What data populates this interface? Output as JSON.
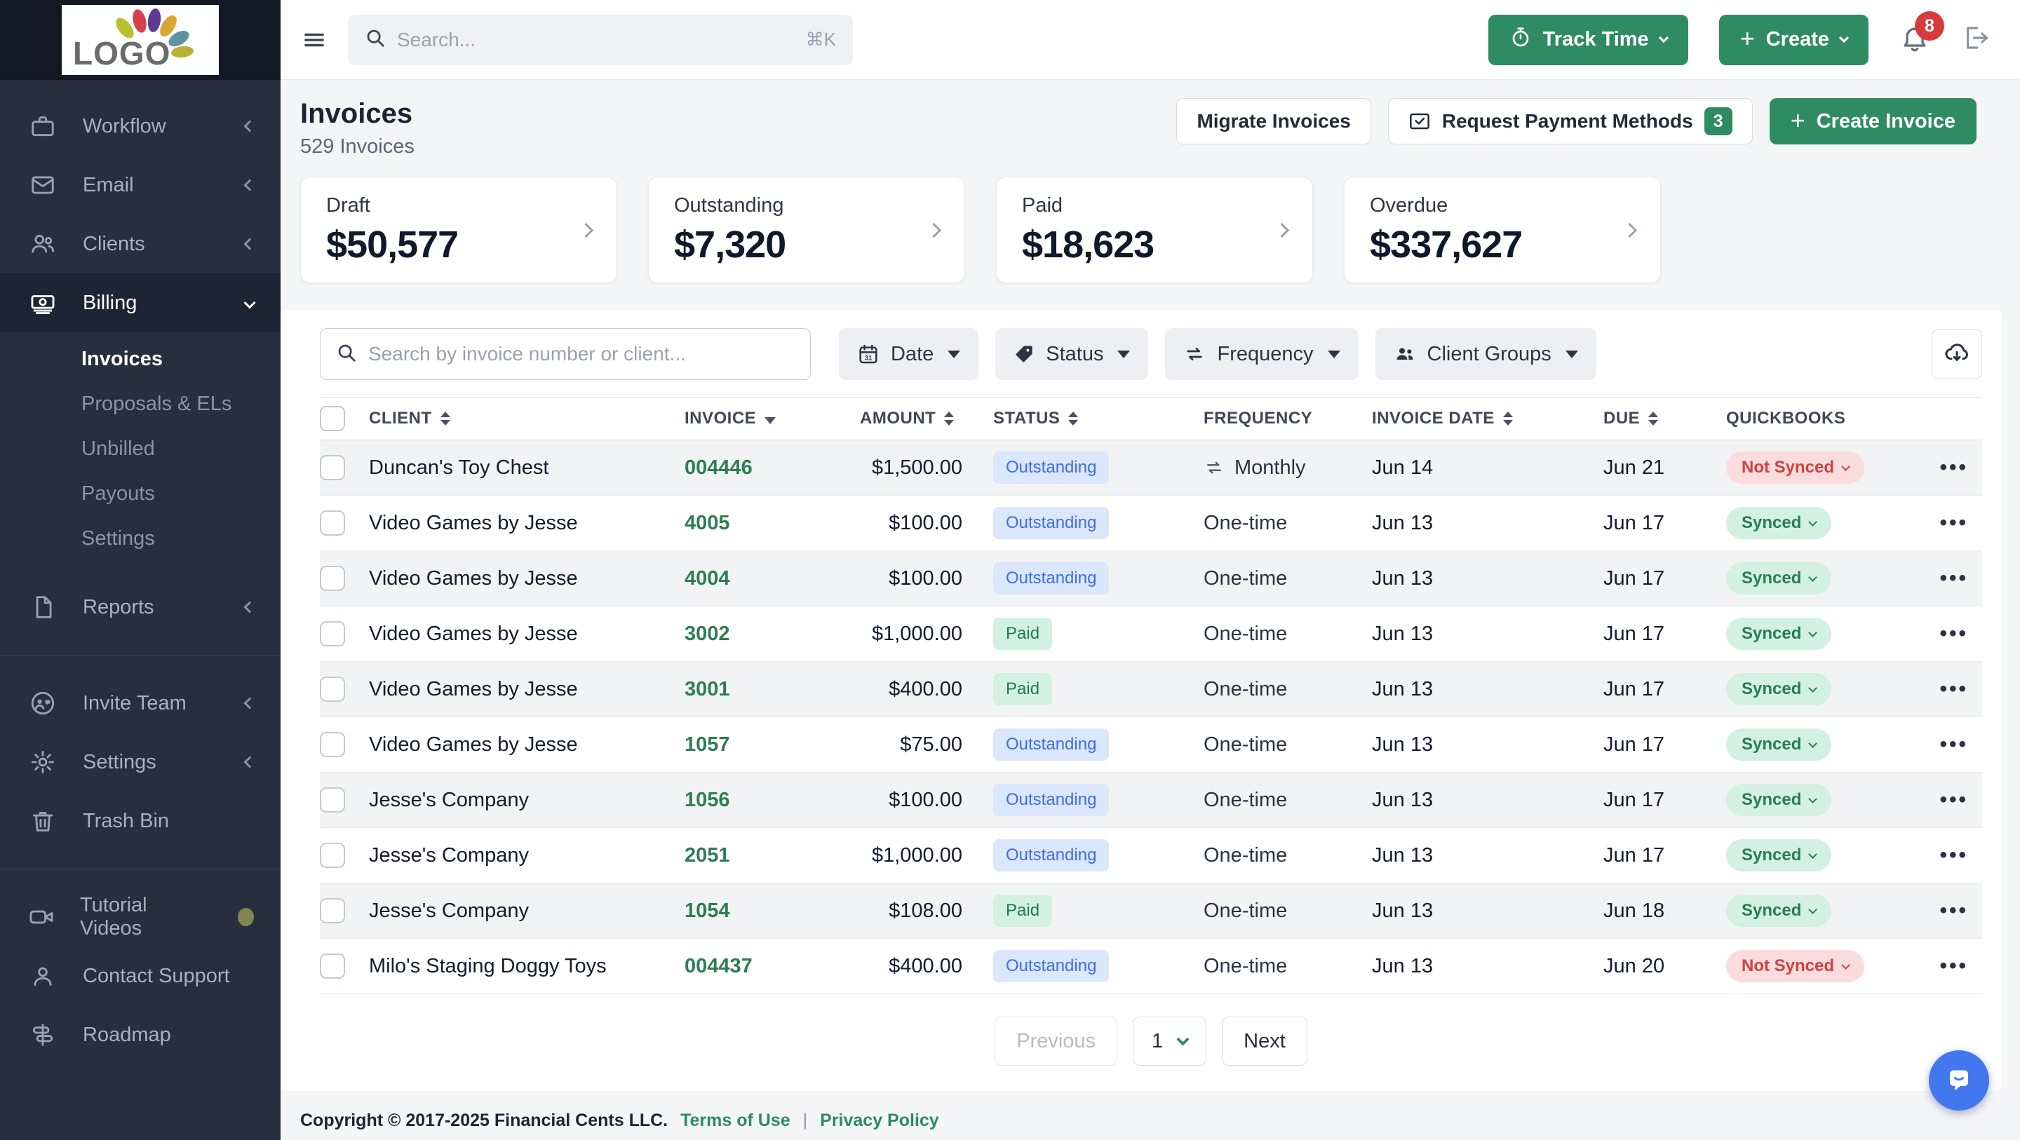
{
  "app": {
    "logo_text": "LOGO"
  },
  "topbar": {
    "search_placeholder": "Search...",
    "search_shortcut": "⌘K",
    "track_time_label": "Track Time",
    "create_label": "Create",
    "notifications_count": "8"
  },
  "sidebar": {
    "items": [
      {
        "label": "Workflow"
      },
      {
        "label": "Email"
      },
      {
        "label": "Clients"
      },
      {
        "label": "Billing"
      },
      {
        "label": "Reports"
      },
      {
        "label": "Invite Team"
      },
      {
        "label": "Settings"
      },
      {
        "label": "Trash Bin"
      },
      {
        "label": "Tutorial Videos"
      },
      {
        "label": "Contact Support"
      },
      {
        "label": "Roadmap"
      }
    ],
    "billing_submenu": [
      {
        "label": "Invoices",
        "active": true
      },
      {
        "label": "Proposals & ELs"
      },
      {
        "label": "Unbilled"
      },
      {
        "label": "Payouts"
      },
      {
        "label": "Settings"
      }
    ]
  },
  "page": {
    "title": "Invoices",
    "subtitle": "529 Invoices",
    "migrate_button": "Migrate Invoices",
    "request_payment_button": "Request Payment Methods",
    "request_payment_badge": "3",
    "create_invoice_button": "Create Invoice"
  },
  "summary_cards": [
    {
      "label": "Draft",
      "amount": "$50,577"
    },
    {
      "label": "Outstanding",
      "amount": "$7,320"
    },
    {
      "label": "Paid",
      "amount": "$18,623"
    },
    {
      "label": "Overdue",
      "amount": "$337,627"
    }
  ],
  "filters": {
    "search_placeholder": "Search by invoice number or client...",
    "dropdowns": [
      {
        "label": "Date"
      },
      {
        "label": "Status"
      },
      {
        "label": "Frequency"
      },
      {
        "label": "Client Groups"
      }
    ]
  },
  "table": {
    "columns": [
      {
        "label": "Client",
        "sort": "both"
      },
      {
        "label": "Invoice",
        "sort": "desc"
      },
      {
        "label": "Amount",
        "sort": "both",
        "align": "right"
      },
      {
        "label": "Status",
        "sort": "both"
      },
      {
        "label": "Frequency",
        "sort": "none"
      },
      {
        "label": "Invoice Date",
        "sort": "both"
      },
      {
        "label": "Due",
        "sort": "both"
      },
      {
        "label": "Quickbooks",
        "sort": "none"
      }
    ],
    "rows": [
      {
        "client": "Duncan's Toy Chest",
        "invoice": "004446",
        "amount": "$1,500.00",
        "status": "Outstanding",
        "frequency": "Monthly",
        "recurring": true,
        "invoice_date": "Jun 14",
        "due": "Jun 21",
        "quickbooks": "Not Synced"
      },
      {
        "client": "Video Games by Jesse",
        "invoice": "4005",
        "amount": "$100.00",
        "status": "Outstanding",
        "frequency": "One-time",
        "recurring": false,
        "invoice_date": "Jun 13",
        "due": "Jun 17",
        "quickbooks": "Synced"
      },
      {
        "client": "Video Games by Jesse",
        "invoice": "4004",
        "amount": "$100.00",
        "status": "Outstanding",
        "frequency": "One-time",
        "recurring": false,
        "invoice_date": "Jun 13",
        "due": "Jun 17",
        "quickbooks": "Synced"
      },
      {
        "client": "Video Games by Jesse",
        "invoice": "3002",
        "amount": "$1,000.00",
        "status": "Paid",
        "frequency": "One-time",
        "recurring": false,
        "invoice_date": "Jun 13",
        "due": "Jun 17",
        "quickbooks": "Synced"
      },
      {
        "client": "Video Games by Jesse",
        "invoice": "3001",
        "amount": "$400.00",
        "status": "Paid",
        "frequency": "One-time",
        "recurring": false,
        "invoice_date": "Jun 13",
        "due": "Jun 17",
        "quickbooks": "Synced"
      },
      {
        "client": "Video Games by Jesse",
        "invoice": "1057",
        "amount": "$75.00",
        "status": "Outstanding",
        "frequency": "One-time",
        "recurring": false,
        "invoice_date": "Jun 13",
        "due": "Jun 17",
        "quickbooks": "Synced"
      },
      {
        "client": "Jesse's Company",
        "invoice": "1056",
        "amount": "$100.00",
        "status": "Outstanding",
        "frequency": "One-time",
        "recurring": false,
        "invoice_date": "Jun 13",
        "due": "Jun 17",
        "quickbooks": "Synced"
      },
      {
        "client": "Jesse's Company",
        "invoice": "2051",
        "amount": "$1,000.00",
        "status": "Outstanding",
        "frequency": "One-time",
        "recurring": false,
        "invoice_date": "Jun 13",
        "due": "Jun 17",
        "quickbooks": "Synced"
      },
      {
        "client": "Jesse's Company",
        "invoice": "1054",
        "amount": "$108.00",
        "status": "Paid",
        "frequency": "One-time",
        "recurring": false,
        "invoice_date": "Jun 13",
        "due": "Jun 18",
        "quickbooks": "Synced"
      },
      {
        "client": "Milo's Staging Doggy Toys",
        "invoice": "004437",
        "amount": "$400.00",
        "status": "Outstanding",
        "frequency": "One-time",
        "recurring": false,
        "invoice_date": "Jun 13",
        "due": "Jun 20",
        "quickbooks": "Not Synced"
      }
    ]
  },
  "pagination": {
    "previous": "Previous",
    "page": "1",
    "next": "Next"
  },
  "footer": {
    "copyright": "Copyright © 2017-2025 Financial Cents LLC.",
    "terms": "Terms of Use",
    "separator": "|",
    "privacy": "Privacy Policy"
  },
  "colors": {
    "accent_green": "#2e8b62",
    "sidebar_bg": "#272e3e",
    "badge_blue_bg": "#dbe7fc",
    "badge_blue_text": "#3d6deb",
    "badge_green_bg": "#d3f1e2",
    "badge_green_text": "#1f7a4e",
    "badge_red_bg": "#fadcdc",
    "badge_red_text": "#cf4040",
    "notification_red": "#d63c3c",
    "chat_blue": "#4377ee"
  }
}
